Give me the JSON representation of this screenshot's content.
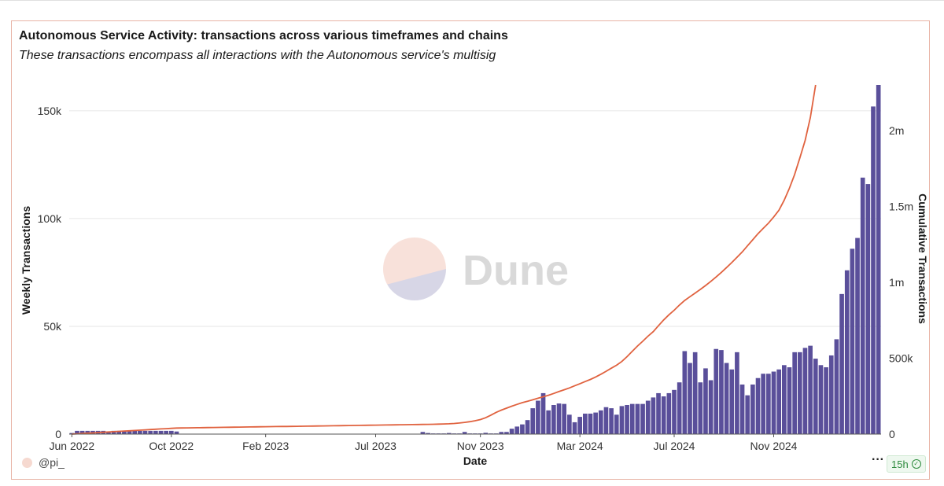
{
  "header": {
    "title": "Autonomous Service Activity: transactions across various timeframes and chains",
    "subtitle": "These transactions encompass all interactions with the Autonomous service's multisig"
  },
  "footer": {
    "author": "@pi_",
    "more": "···",
    "refresh_badge": "15h"
  },
  "watermark": {
    "text": "Dune"
  },
  "colors": {
    "bars": "#5a4f9a",
    "line": "#e0623f",
    "border": "#e8b4a6",
    "grid": "#e6e6e6"
  },
  "chart_data": {
    "type": "bar",
    "xlabel": "Date",
    "ylabel_left": "Weekly Transactions",
    "ylabel_right": "Cumulative Transactions",
    "ylim_left": [
      0,
      162000
    ],
    "ylim_right": [
      0,
      2300000
    ],
    "left_ticks": [
      "0",
      "50k",
      "100k",
      "150k"
    ],
    "left_tick_values": [
      0,
      50000,
      100000,
      150000
    ],
    "right_ticks": [
      "0",
      "500k",
      "1m",
      "1.5m",
      "2m"
    ],
    "right_tick_values": [
      0,
      500000,
      1000000,
      1500000,
      2000000
    ],
    "x_ticks": [
      "Jun 2022",
      "Oct 2022",
      "Feb 2023",
      "Jul 2023",
      "Nov 2023",
      "Mar 2024",
      "Jul 2024",
      "Nov 2024"
    ],
    "x_tick_weeks": [
      0,
      19,
      37,
      58,
      78,
      97,
      115,
      134
    ],
    "series": [
      {
        "type": "bar",
        "values": [
          500,
          1500,
          1500,
          1500,
          1500,
          1500,
          1500,
          1000,
          1500,
          1500,
          1500,
          1500,
          1500,
          1500,
          1500,
          1500,
          1500,
          1500,
          1500,
          1500,
          1200,
          0,
          0,
          0,
          0,
          0,
          0,
          0,
          0,
          0,
          0,
          0,
          0,
          0,
          0,
          0,
          0,
          0,
          0,
          0,
          0,
          0,
          0,
          0,
          0,
          0,
          0,
          0,
          0,
          0,
          0,
          0,
          0,
          0,
          0,
          0,
          0,
          0,
          0,
          0,
          0,
          0,
          0,
          0,
          0,
          0,
          0,
          1000,
          500,
          300,
          300,
          300,
          500,
          300,
          300,
          1000,
          300,
          300,
          300,
          600,
          300,
          300,
          1000,
          1000,
          2500,
          3500,
          4500,
          6500,
          12000,
          15500,
          19000,
          11000,
          13500,
          14200,
          14000,
          9000,
          5500,
          8000,
          9500,
          9500,
          10000,
          11000,
          12500,
          12000,
          9000,
          13000,
          13500,
          14000,
          14000,
          14000,
          15500,
          17000,
          19000,
          17500,
          19000,
          20500,
          24000,
          38500,
          33000,
          38000,
          24000,
          30500,
          25000,
          39500,
          39000,
          33000,
          30000,
          38000,
          23000,
          18000,
          23000,
          26000,
          28000,
          28000,
          29000,
          30000,
          32000,
          31000,
          38000,
          38000,
          40000,
          41000,
          35000,
          32000,
          31000,
          36500,
          44000,
          65000,
          76000,
          86000,
          91000,
          119000,
          116000,
          152000,
          162000
        ]
      },
      {
        "type": "line",
        "name": "Cumulative Transactions",
        "values": [
          0,
          2000,
          4000,
          6000,
          8000,
          10000,
          12000,
          14000,
          16000,
          18000,
          20000,
          22000,
          24000,
          26000,
          28000,
          30000,
          32000,
          34000,
          36000,
          38000,
          40000,
          40500,
          41000,
          41500,
          42000,
          42500,
          43000,
          43500,
          44000,
          44500,
          45000,
          45500,
          46000,
          46500,
          47000,
          47500,
          48000,
          48500,
          49000,
          49500,
          50000,
          50500,
          51000,
          51500,
          52000,
          52500,
          53000,
          53500,
          54000,
          54500,
          55000,
          55500,
          56000,
          56500,
          57000,
          57500,
          58000,
          58500,
          59000,
          59500,
          60000,
          60500,
          61000,
          61500,
          62000,
          62500,
          63000,
          63500,
          64000,
          65000,
          66000,
          67000,
          68000,
          70000,
          73000,
          77000,
          82000,
          88000,
          96000,
          108000,
          125000,
          143000,
          158000,
          171000,
          184000,
          196000,
          207000,
          216000,
          226000,
          236000,
          246000,
          256000,
          268000,
          280000,
          292000,
          304000,
          318000,
          332000,
          346000,
          360000,
          376000,
          394000,
          414000,
          434000,
          454000,
          478000,
          510000,
          545000,
          580000,
          612000,
          645000,
          675000,
          714000,
          752000,
          786000,
          816000,
          850000,
          880000,
          905000,
          929000,
          953000,
          979000,
          1006000,
          1035000,
          1065000,
          1097000,
          1130000,
          1165000,
          1200000,
          1240000,
          1280000,
          1320000,
          1355000,
          1390000,
          1430000,
          1475000,
          1540000,
          1620000,
          1710000,
          1820000,
          1935000,
          2085000,
          2300000
        ]
      }
    ]
  }
}
